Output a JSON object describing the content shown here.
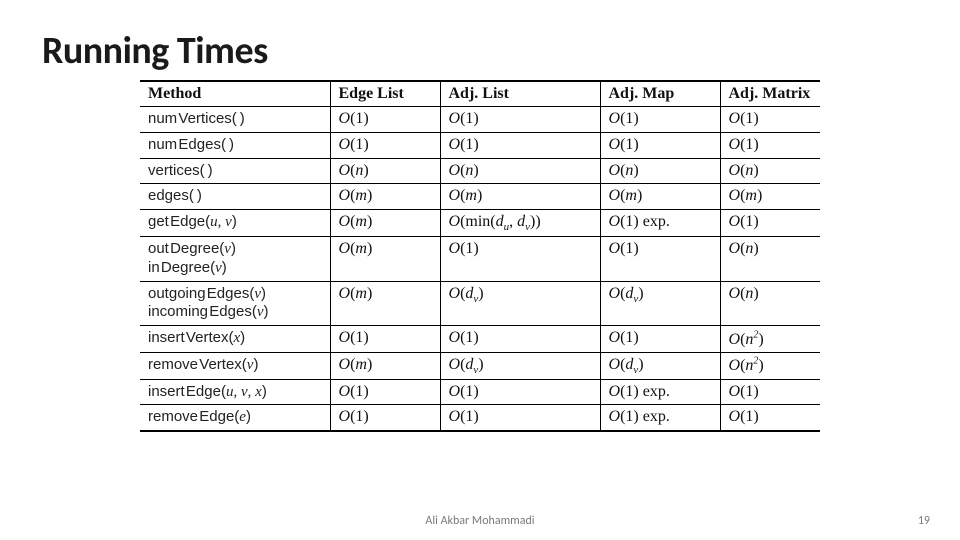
{
  "title": "Running Times",
  "headers": [
    "Method",
    "Edge List",
    "Adj. List",
    "Adj. Map",
    "Adj. Matrix"
  ],
  "rows": [
    {
      "methods": [
        {
          "name": "numVertices",
          "args": ""
        }
      ],
      "cells": [
        {
          "k": "1"
        },
        {
          "k": "1"
        },
        {
          "k": "1"
        },
        {
          "k": "1"
        }
      ]
    },
    {
      "methods": [
        {
          "name": "numEdges",
          "args": ""
        }
      ],
      "cells": [
        {
          "k": "1"
        },
        {
          "k": "1"
        },
        {
          "k": "1"
        },
        {
          "k": "1"
        }
      ]
    },
    {
      "methods": [
        {
          "name": "vertices",
          "args": ""
        }
      ],
      "cells": [
        {
          "k": "n"
        },
        {
          "k": "n"
        },
        {
          "k": "n"
        },
        {
          "k": "n"
        }
      ]
    },
    {
      "methods": [
        {
          "name": "edges",
          "args": ""
        }
      ],
      "cells": [
        {
          "k": "m"
        },
        {
          "k": "m"
        },
        {
          "k": "m"
        },
        {
          "k": "m"
        }
      ]
    },
    {
      "methods": [
        {
          "name": "getEdge",
          "args": "u, v"
        }
      ],
      "cells": [
        {
          "k": "m"
        },
        {
          "k": "min",
          "min": [
            "d",
            "u",
            "d",
            "v"
          ]
        },
        {
          "k": "1",
          "exp": true
        },
        {
          "k": "1"
        }
      ]
    },
    {
      "methods": [
        {
          "name": "outDegree",
          "args": "v"
        },
        {
          "name": "inDegree",
          "args": "v"
        }
      ],
      "cells": [
        {
          "k": "m"
        },
        {
          "k": "1"
        },
        {
          "k": "1"
        },
        {
          "k": "n"
        }
      ]
    },
    {
      "methods": [
        {
          "name": "outgoingEdges",
          "args": "v"
        },
        {
          "name": "incomingEdges",
          "args": "v"
        }
      ],
      "cells": [
        {
          "k": "m"
        },
        {
          "k": "dv"
        },
        {
          "k": "dv"
        },
        {
          "k": "n"
        }
      ]
    },
    {
      "methods": [
        {
          "name": "insertVertex",
          "args": "x"
        }
      ],
      "cells": [
        {
          "k": "1"
        },
        {
          "k": "1"
        },
        {
          "k": "1"
        },
        {
          "k": "n2"
        }
      ]
    },
    {
      "methods": [
        {
          "name": "removeVertex",
          "args": "v"
        }
      ],
      "cells": [
        {
          "k": "m"
        },
        {
          "k": "dv"
        },
        {
          "k": "dv"
        },
        {
          "k": "n2"
        }
      ]
    },
    {
      "methods": [
        {
          "name": "insertEdge",
          "args": "u, v, x"
        }
      ],
      "cells": [
        {
          "k": "1"
        },
        {
          "k": "1"
        },
        {
          "k": "1",
          "exp": true
        },
        {
          "k": "1"
        }
      ]
    },
    {
      "methods": [
        {
          "name": "removeEdge",
          "args": "e"
        }
      ],
      "cells": [
        {
          "k": "1"
        },
        {
          "k": "1"
        },
        {
          "k": "1",
          "exp": true
        },
        {
          "k": "1"
        }
      ]
    }
  ],
  "footer": {
    "author": "Ali Akbar Mohammadi",
    "page": "19"
  }
}
